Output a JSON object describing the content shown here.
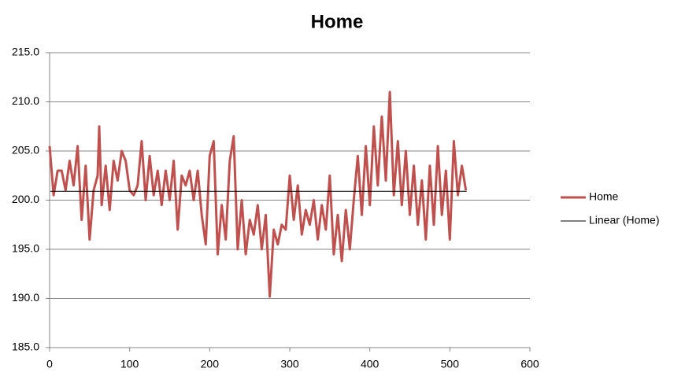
{
  "chart_data": {
    "type": "line",
    "title": "Home",
    "series": [
      {
        "name": "Home",
        "color": "#c0504d",
        "width": 3,
        "x": [
          0,
          5,
          10,
          15,
          20,
          25,
          30,
          35,
          40,
          45,
          50,
          55,
          60,
          62,
          65,
          70,
          75,
          80,
          85,
          90,
          95,
          100,
          105,
          110,
          115,
          120,
          125,
          130,
          135,
          140,
          145,
          150,
          155,
          160,
          165,
          170,
          175,
          180,
          185,
          190,
          195,
          200,
          205,
          210,
          215,
          220,
          225,
          230,
          235,
          240,
          245,
          250,
          255,
          260,
          265,
          270,
          275,
          280,
          285,
          290,
          295,
          300,
          305,
          310,
          315,
          320,
          325,
          330,
          335,
          340,
          345,
          350,
          355,
          360,
          365,
          370,
          375,
          380,
          385,
          390,
          395,
          400,
          405,
          410,
          415,
          420,
          425,
          430,
          435,
          440,
          445,
          450,
          455,
          460,
          465,
          470,
          475,
          480,
          485,
          490,
          495,
          500,
          505,
          510,
          515,
          520
        ],
        "values": [
          205.5,
          200.5,
          203,
          203,
          201,
          204,
          201.5,
          205.5,
          198,
          203.5,
          196,
          201,
          202.5,
          207.5,
          199.5,
          203.5,
          199,
          204,
          202,
          205,
          204,
          201,
          200.5,
          201.5,
          206,
          200,
          204.5,
          200.5,
          203,
          199.5,
          203,
          200,
          204,
          197,
          202.5,
          201.5,
          203,
          200,
          203,
          198.5,
          195.5,
          204.5,
          206,
          194.5,
          199.5,
          196,
          204,
          206.5,
          195,
          200,
          194.5,
          198,
          196.5,
          199.5,
          195,
          198.5,
          190.2,
          197,
          195.5,
          197.5,
          197,
          202.5,
          198,
          201.5,
          196.5,
          199,
          197.5,
          200,
          196,
          199.5,
          197,
          202.5,
          194.5,
          198.5,
          193.8,
          199,
          195,
          200,
          204.5,
          198.5,
          205.5,
          199.5,
          207.5,
          201.5,
          208.5,
          202,
          211,
          200.5,
          206,
          199.5,
          205,
          198.5,
          203.5,
          197.5,
          202,
          196,
          203.5,
          197.5,
          205.5,
          198.5,
          203,
          196,
          206,
          200.5,
          203.5,
          201
        ]
      },
      {
        "name": "Linear (Home)",
        "color": "#000000",
        "width": 1,
        "x": [
          1,
          521
        ],
        "values": [
          200.9,
          200.9
        ]
      }
    ],
    "xlim": [
      0,
      600
    ],
    "xticks": [
      0,
      100,
      200,
      300,
      400,
      500,
      600
    ],
    "ylim": [
      185,
      215
    ],
    "yticks": [
      {
        "value": 185,
        "label": "185.0"
      },
      {
        "value": 190,
        "label": "190.0"
      },
      {
        "value": 195,
        "label": "195.0"
      },
      {
        "value": 200,
        "label": "200.0"
      },
      {
        "value": 205,
        "label": "205.0"
      },
      {
        "value": 210,
        "label": "210.0"
      },
      {
        "value": 215,
        "label": "215.0"
      }
    ],
    "grid": true,
    "legend": "right"
  }
}
